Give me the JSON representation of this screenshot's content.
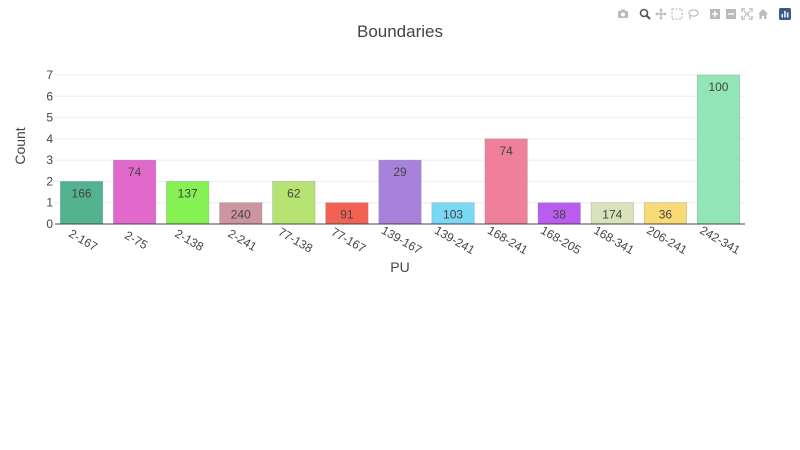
{
  "toolbar": {
    "buttons": [
      {
        "name": "camera-icon",
        "group": 1
      },
      {
        "name": "zoom-icon",
        "group": 2
      },
      {
        "name": "pan-icon",
        "group": 2
      },
      {
        "name": "box-select-icon",
        "group": 2
      },
      {
        "name": "lasso-select-icon",
        "group": 2
      },
      {
        "name": "zoom-in-icon",
        "group": 3
      },
      {
        "name": "zoom-out-icon",
        "group": 3
      },
      {
        "name": "autoscale-icon",
        "group": 3
      },
      {
        "name": "home-icon",
        "group": 3
      },
      {
        "name": "plotly-logo-icon",
        "group": 4
      }
    ]
  },
  "chart_data": {
    "type": "bar",
    "title": "Boundaries",
    "xlabel": "PU",
    "ylabel": "Count",
    "ylim": [
      0,
      7
    ],
    "yticks": [
      0,
      1,
      2,
      3,
      4,
      5,
      6,
      7
    ],
    "grid": true,
    "categories": [
      "2-167",
      "2-75",
      "2-138",
      "2-241",
      "77-138",
      "77-167",
      "139-167",
      "139-241",
      "168-241",
      "168-205",
      "168-341",
      "206-241",
      "242-341"
    ],
    "values": [
      2,
      3,
      2,
      1,
      2,
      1,
      3,
      1,
      4,
      1,
      1,
      1,
      7
    ],
    "labels": [
      "166",
      "74",
      "137",
      "240",
      "62",
      "91",
      "29",
      "103",
      "74",
      "38",
      "174",
      "36",
      "100"
    ],
    "colors": [
      "#4aae8a",
      "#e061c9",
      "#7ef04a",
      "#c98f9b",
      "#b3e26b",
      "#f2594a",
      "#a37ad8",
      "#72d6f2",
      "#ee7895",
      "#b653ee",
      "#d7e0b6",
      "#f8d96f",
      "#8be4b2"
    ]
  }
}
